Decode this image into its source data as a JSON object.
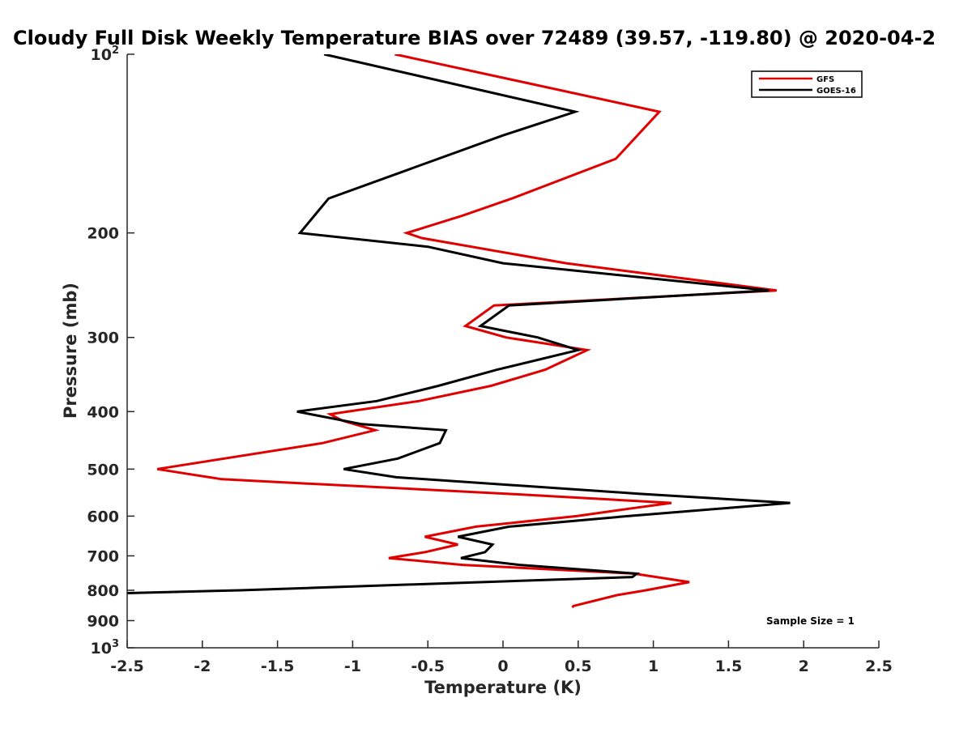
{
  "chart_data": {
    "type": "line",
    "title": "Cloudy Full Disk Weekly Temperature BIAS over 72489 (39.57, -119.80) @ 2020-04-2",
    "xlabel": "Temperature (K)",
    "ylabel": "Pressure (mb)",
    "xlim": [
      -2.5,
      2.5
    ],
    "ylim": [
      100,
      1000
    ],
    "y_scale": "log",
    "y_reversed": true,
    "grid": false,
    "legend_position": "top-right",
    "x_ticks": [
      {
        "value": -2.5,
        "label": "-2.5"
      },
      {
        "value": -2,
        "label": "-2"
      },
      {
        "value": -1.5,
        "label": "-1.5"
      },
      {
        "value": -1,
        "label": "-1"
      },
      {
        "value": -0.5,
        "label": "-0.5"
      },
      {
        "value": 0,
        "label": "0"
      },
      {
        "value": 0.5,
        "label": "0.5"
      },
      {
        "value": 1,
        "label": "1"
      },
      {
        "value": 1.5,
        "label": "1.5"
      },
      {
        "value": 2,
        "label": "2"
      },
      {
        "value": 2.5,
        "label": "2.5"
      }
    ],
    "y_ticks": [
      {
        "value": 100,
        "label": "10",
        "sup": "2"
      },
      {
        "value": 200,
        "label": "200",
        "sup": ""
      },
      {
        "value": 300,
        "label": "300",
        "sup": ""
      },
      {
        "value": 400,
        "label": "400",
        "sup": ""
      },
      {
        "value": 500,
        "label": "500",
        "sup": ""
      },
      {
        "value": 600,
        "label": "600",
        "sup": ""
      },
      {
        "value": 700,
        "label": "700",
        "sup": ""
      },
      {
        "value": 800,
        "label": "800",
        "sup": ""
      },
      {
        "value": 900,
        "label": "900",
        "sup": ""
      },
      {
        "value": 1000,
        "label": "10",
        "sup": "3"
      }
    ],
    "series": [
      {
        "name": "GFS",
        "color": "#e00000",
        "points": [
          {
            "x": -0.72,
            "p": 100
          },
          {
            "x": 1.04,
            "p": 125
          },
          {
            "x": 0.75,
            "p": 150
          },
          {
            "x": 0.06,
            "p": 175
          },
          {
            "x": -0.27,
            "p": 187
          },
          {
            "x": -0.64,
            "p": 200
          },
          {
            "x": -0.54,
            "p": 204
          },
          {
            "x": 0.42,
            "p": 225
          },
          {
            "x": 1.82,
            "p": 250
          },
          {
            "x": -0.06,
            "p": 265
          },
          {
            "x": -0.25,
            "p": 287
          },
          {
            "x": 0.02,
            "p": 300
          },
          {
            "x": 0.56,
            "p": 315
          },
          {
            "x": 0.28,
            "p": 340
          },
          {
            "x": -0.08,
            "p": 362
          },
          {
            "x": -0.56,
            "p": 384
          },
          {
            "x": -1.15,
            "p": 404
          },
          {
            "x": -1.07,
            "p": 414
          },
          {
            "x": -0.85,
            "p": 430
          },
          {
            "x": -1.2,
            "p": 452
          },
          {
            "x": -2.3,
            "p": 500
          },
          {
            "x": -1.87,
            "p": 520
          },
          {
            "x": 0.02,
            "p": 550
          },
          {
            "x": 1.12,
            "p": 570
          },
          {
            "x": 0.84,
            "p": 583
          },
          {
            "x": 0.49,
            "p": 600
          },
          {
            "x": -0.18,
            "p": 625
          },
          {
            "x": -0.52,
            "p": 650
          },
          {
            "x": -0.3,
            "p": 670
          },
          {
            "x": -0.52,
            "p": 690
          },
          {
            "x": -0.76,
            "p": 706
          },
          {
            "x": -0.27,
            "p": 725
          },
          {
            "x": 0.87,
            "p": 750
          },
          {
            "x": 1.24,
            "p": 775
          },
          {
            "x": 0.95,
            "p": 800
          },
          {
            "x": 0.76,
            "p": 815
          },
          {
            "x": 0.47,
            "p": 850
          },
          {
            "x": 0.46,
            "p": 855
          }
        ]
      },
      {
        "name": "GOES-16",
        "color": "#000000",
        "points": [
          {
            "x": -1.19,
            "p": 100
          },
          {
            "x": 0.48,
            "p": 125
          },
          {
            "x": 0.0,
            "p": 137
          },
          {
            "x": -1.16,
            "p": 175
          },
          {
            "x": -1.35,
            "p": 200
          },
          {
            "x": -0.5,
            "p": 211
          },
          {
            "x": 0.0,
            "p": 225
          },
          {
            "x": 1.77,
            "p": 250
          },
          {
            "x": 0.04,
            "p": 265
          },
          {
            "x": -0.15,
            "p": 287
          },
          {
            "x": 0.23,
            "p": 300
          },
          {
            "x": 0.5,
            "p": 315
          },
          {
            "x": -0.04,
            "p": 340
          },
          {
            "x": -0.43,
            "p": 362
          },
          {
            "x": -0.84,
            "p": 384
          },
          {
            "x": -1.37,
            "p": 400
          },
          {
            "x": -0.94,
            "p": 420
          },
          {
            "x": -0.38,
            "p": 430
          },
          {
            "x": -0.42,
            "p": 452
          },
          {
            "x": -0.7,
            "p": 480
          },
          {
            "x": -1.06,
            "p": 500
          },
          {
            "x": -0.71,
            "p": 516
          },
          {
            "x": 0.9,
            "p": 550
          },
          {
            "x": 1.91,
            "p": 570
          },
          {
            "x": 0.83,
            "p": 600
          },
          {
            "x": 0.04,
            "p": 625
          },
          {
            "x": -0.3,
            "p": 650
          },
          {
            "x": -0.07,
            "p": 670
          },
          {
            "x": -0.12,
            "p": 690
          },
          {
            "x": -0.28,
            "p": 706
          },
          {
            "x": 0.11,
            "p": 725
          },
          {
            "x": 0.89,
            "p": 750
          },
          {
            "x": 0.86,
            "p": 760
          },
          {
            "x": -1.75,
            "p": 800
          },
          {
            "x": -2.6,
            "p": 810
          }
        ]
      }
    ],
    "annotations": [
      {
        "text": "Sample Size = 1"
      }
    ]
  }
}
